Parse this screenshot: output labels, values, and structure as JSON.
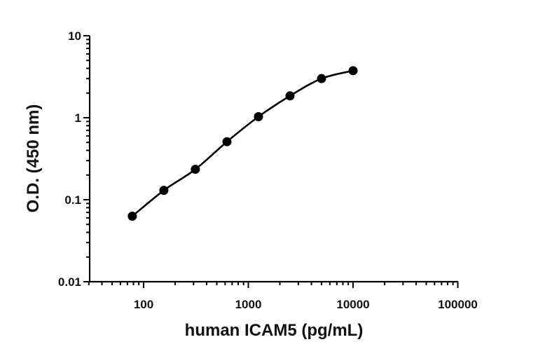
{
  "chart_data": {
    "type": "scatter",
    "title": "",
    "xlabel": "human ICAM5 (pg/mL)",
    "ylabel": "O.D. (450 nm)",
    "xscale": "log",
    "yscale": "log",
    "xlim": [
      30,
      100000
    ],
    "ylim": [
      0.01,
      10
    ],
    "x_ticks": [
      "100",
      "1000",
      "10000",
      "100000"
    ],
    "y_ticks": [
      "0.01",
      "0.1",
      "1",
      "10"
    ],
    "grid": false,
    "legend": "none",
    "series": [
      {
        "x": [
          78,
          156,
          312,
          625,
          1250,
          2500,
          5000,
          10000
        ],
        "y": [
          0.063,
          0.13,
          0.235,
          0.51,
          1.03,
          1.85,
          3.0,
          3.75
        ],
        "fit": "4PL curve"
      }
    ],
    "colors": {
      "points": "#000000",
      "line": "#000000"
    }
  }
}
